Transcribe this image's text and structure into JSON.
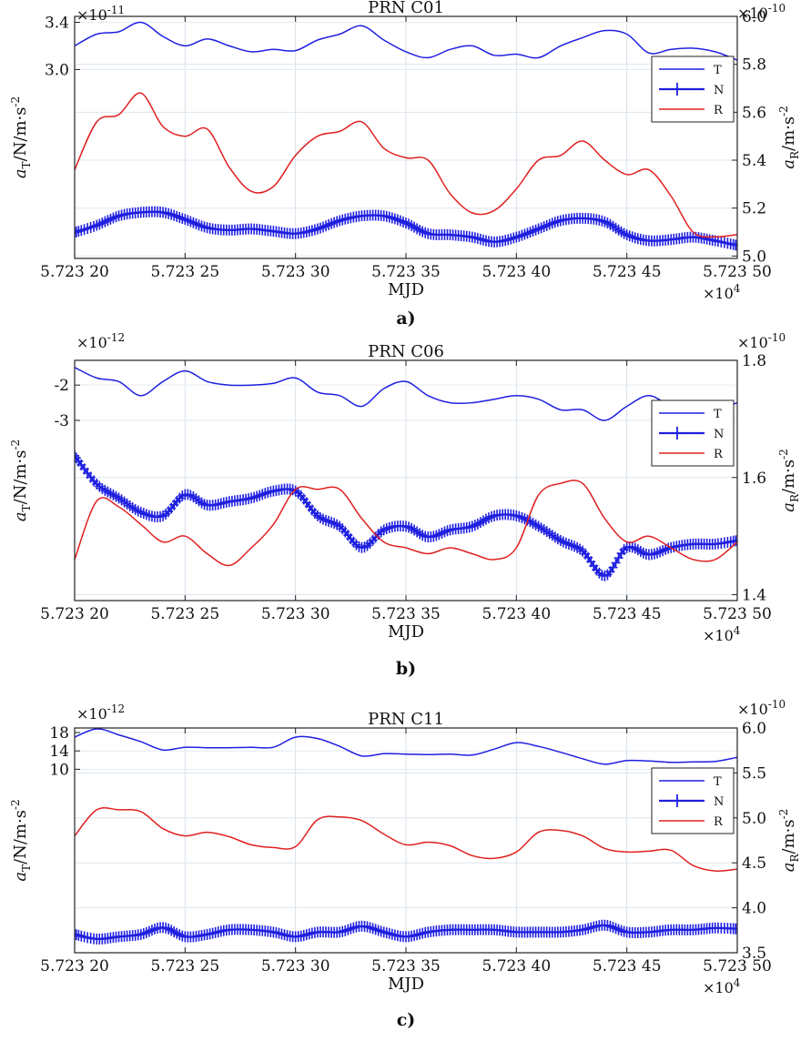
{
  "figure": {
    "panels": [
      "a",
      "b",
      "c"
    ]
  },
  "chart_data": [
    {
      "type": "line",
      "subfigure_label": "a)",
      "title": "PRN C01",
      "xlabel": "MJD",
      "ylabel_left": "a_T/N/m·s^-2",
      "ylabel_right": "a_R/m·s^-2",
      "x_multiplier": "×10^4",
      "y_left_multiplier": "×10^-11",
      "y_right_multiplier": "×10^-10",
      "xlim": [
        5.7232,
        5.7235
      ],
      "xticks": [
        5.7232,
        5.72325,
        5.7233,
        5.72335,
        5.7234,
        5.72345,
        5.7235
      ],
      "xtick_labels": [
        "5.723 20",
        "5.723 25",
        "5.723 30",
        "5.723 35",
        "5.723 40",
        "5.723 45",
        "5.723 50"
      ],
      "ylim_left": [
        1.4,
        3.45
      ],
      "yticks_left": [
        3.0,
        3.4
      ],
      "ytick_labels_left": [
        "3.0",
        "3.4"
      ],
      "ylim_right": [
        4.99,
        6.0
      ],
      "yticks_right": [
        5.0,
        5.2,
        5.4,
        5.6,
        5.8,
        6.0
      ],
      "ytick_labels_right": [
        "5.0",
        "5.2",
        "5.4",
        "5.6",
        "5.8",
        "6.0"
      ],
      "grid": true,
      "legend": "top-right",
      "x": [
        5.7232,
        5.72321,
        5.72322,
        5.72323,
        5.72324,
        5.72325,
        5.72326,
        5.72327,
        5.72328,
        5.72329,
        5.7233,
        5.72331,
        5.72332,
        5.72333,
        5.72334,
        5.72335,
        5.72336,
        5.72337,
        5.72338,
        5.72339,
        5.7234,
        5.72341,
        5.72342,
        5.72343,
        5.72344,
        5.72345,
        5.72346,
        5.72347,
        5.72348,
        5.72349,
        5.7235
      ],
      "series": [
        {
          "name": "T",
          "axis": "left",
          "color": "#1f1fe0",
          "marker": "none",
          "values": [
            3.2,
            3.3,
            3.32,
            3.4,
            3.28,
            3.2,
            3.26,
            3.2,
            3.15,
            3.17,
            3.16,
            3.25,
            3.3,
            3.37,
            3.25,
            3.15,
            3.1,
            3.17,
            3.2,
            3.12,
            3.13,
            3.1,
            3.2,
            3.27,
            3.33,
            3.3,
            3.14,
            3.17,
            3.18,
            3.15,
            3.08
          ]
        },
        {
          "name": "N",
          "axis": "left",
          "color": "#1f1fe0",
          "marker": "plus",
          "values": [
            1.62,
            1.68,
            1.76,
            1.79,
            1.79,
            1.73,
            1.66,
            1.64,
            1.65,
            1.63,
            1.61,
            1.65,
            1.72,
            1.76,
            1.76,
            1.7,
            1.61,
            1.6,
            1.58,
            1.54,
            1.58,
            1.65,
            1.72,
            1.74,
            1.71,
            1.6,
            1.55,
            1.56,
            1.58,
            1.55,
            1.51
          ]
        },
        {
          "name": "R",
          "axis": "right",
          "color": "#e02020",
          "marker": "none",
          "values": [
            5.36,
            5.56,
            5.59,
            5.68,
            5.54,
            5.5,
            5.53,
            5.37,
            5.27,
            5.29,
            5.42,
            5.5,
            5.52,
            5.56,
            5.45,
            5.41,
            5.4,
            5.26,
            5.18,
            5.19,
            5.28,
            5.4,
            5.42,
            5.48,
            5.4,
            5.34,
            5.36,
            5.25,
            5.1,
            5.08,
            5.09
          ]
        }
      ]
    },
    {
      "type": "line",
      "subfigure_label": "b)",
      "title": "PRN C06",
      "xlabel": "MJD",
      "ylabel_left": "a_T/N/m·s^-2",
      "ylabel_right": "a_R/m·s^-2",
      "x_multiplier": "×10^4",
      "y_left_multiplier": "×10^-12",
      "y_right_multiplier": "×10^-10",
      "xlim": [
        5.7232,
        5.7235
      ],
      "xticks": [
        5.7232,
        5.72325,
        5.7233,
        5.72335,
        5.7234,
        5.72345,
        5.7235
      ],
      "xtick_labels": [
        "5.723 20",
        "5.723 25",
        "5.723 30",
        "5.723 35",
        "5.723 40",
        "5.723 45",
        "5.723 50"
      ],
      "ylim_left": [
        -8.1,
        -1.3
      ],
      "yticks_left": [
        -2,
        -3
      ],
      "ytick_labels_left": [
        "-2",
        "-3"
      ],
      "ylim_right": [
        1.39,
        1.8
      ],
      "yticks_right": [
        1.4,
        1.6,
        1.8
      ],
      "ytick_labels_right": [
        "1.4",
        "1.6",
        "1.8"
      ],
      "grid": true,
      "legend": "top-right",
      "x": [
        5.7232,
        5.72321,
        5.72322,
        5.72323,
        5.72324,
        5.72325,
        5.72326,
        5.72327,
        5.72328,
        5.72329,
        5.7233,
        5.72331,
        5.72332,
        5.72333,
        5.72334,
        5.72335,
        5.72336,
        5.72337,
        5.72338,
        5.72339,
        5.7234,
        5.72341,
        5.72342,
        5.72343,
        5.72344,
        5.72345,
        5.72346,
        5.72347,
        5.72348,
        5.72349,
        5.7235
      ],
      "series": [
        {
          "name": "T",
          "axis": "left",
          "color": "#1f1fe0",
          "marker": "none",
          "values": [
            -1.5,
            -1.8,
            -1.9,
            -2.3,
            -1.9,
            -1.6,
            -1.9,
            -2.0,
            -2.0,
            -1.95,
            -1.8,
            -2.2,
            -2.3,
            -2.6,
            -2.1,
            -1.9,
            -2.3,
            -2.5,
            -2.5,
            -2.4,
            -2.3,
            -2.4,
            -2.7,
            -2.7,
            -3.0,
            -2.6,
            -2.3,
            -2.6,
            -2.7,
            -2.7,
            -2.5
          ]
        },
        {
          "name": "N",
          "axis": "left",
          "color": "#1f1fe0",
          "marker": "plus",
          "values": [
            -4.0,
            -4.8,
            -5.2,
            -5.6,
            -5.7,
            -5.1,
            -5.4,
            -5.3,
            -5.2,
            -5.0,
            -5.0,
            -5.7,
            -6.0,
            -6.6,
            -6.1,
            -6.0,
            -6.3,
            -6.1,
            -6.0,
            -5.7,
            -5.7,
            -6.0,
            -6.4,
            -6.7,
            -7.4,
            -6.6,
            -6.8,
            -6.6,
            -6.5,
            -6.5,
            -6.4
          ]
        },
        {
          "name": "R",
          "axis": "right",
          "color": "#e02020",
          "marker": "none",
          "values": [
            1.46,
            1.56,
            1.55,
            1.52,
            1.49,
            1.5,
            1.47,
            1.45,
            1.48,
            1.52,
            1.58,
            1.58,
            1.58,
            1.53,
            1.49,
            1.48,
            1.47,
            1.48,
            1.47,
            1.46,
            1.48,
            1.57,
            1.59,
            1.59,
            1.53,
            1.49,
            1.5,
            1.48,
            1.46,
            1.46,
            1.49
          ]
        }
      ]
    },
    {
      "type": "line",
      "subfigure_label": "c)",
      "title": "PRN C11",
      "xlabel": "MJD",
      "ylabel_left": "a_T/N/m·s^-2",
      "ylabel_right": "a_R/m·s^-2",
      "x_multiplier": "×10^4",
      "y_left_multiplier": "×10^-12",
      "y_right_multiplier": "×10^-10",
      "xlim": [
        5.7232,
        5.7235
      ],
      "xticks": [
        5.7232,
        5.72325,
        5.7233,
        5.72335,
        5.7234,
        5.72345,
        5.7235
      ],
      "xtick_labels": [
        "5.723 20",
        "5.723 25",
        "5.723 30",
        "5.723 35",
        "5.723 40",
        "5.723 45",
        "5.723 50"
      ],
      "ylim_left": [
        -30,
        19
      ],
      "yticks_left": [
        10,
        14,
        18
      ],
      "ytick_labels_left": [
        "10",
        "14",
        "18"
      ],
      "ylim_right": [
        3.5,
        6.0
      ],
      "yticks_right": [
        3.5,
        4.0,
        4.5,
        5.0,
        5.5,
        6.0
      ],
      "ytick_labels_right": [
        "3.5",
        "4.0",
        "4.5",
        "5.0",
        "5.5",
        "6.0"
      ],
      "grid": true,
      "legend": "top-right",
      "x": [
        5.7232,
        5.72321,
        5.72322,
        5.72323,
        5.72324,
        5.72325,
        5.72326,
        5.72327,
        5.72328,
        5.72329,
        5.7233,
        5.72331,
        5.72332,
        5.72333,
        5.72334,
        5.72335,
        5.72336,
        5.72337,
        5.72338,
        5.72339,
        5.7234,
        5.72341,
        5.72342,
        5.72343,
        5.72344,
        5.72345,
        5.72346,
        5.72347,
        5.72348,
        5.72349,
        5.7235
      ],
      "series": [
        {
          "name": "T",
          "axis": "left",
          "color": "#1f1fe0",
          "marker": "none",
          "values": [
            17.0,
            18.8,
            17.5,
            16.0,
            14.2,
            14.8,
            14.7,
            14.7,
            14.8,
            14.8,
            17.0,
            16.7,
            15.0,
            12.9,
            13.4,
            13.3,
            13.2,
            13.3,
            13.1,
            14.4,
            15.8,
            15.0,
            13.7,
            12.3,
            11.1,
            11.9,
            11.8,
            11.5,
            11.6,
            11.7,
            12.6
          ]
        },
        {
          "name": "N",
          "axis": "left",
          "color": "#1f1fe0",
          "marker": "plus",
          "values": [
            -26.0,
            -27.0,
            -26.5,
            -26.0,
            -24.5,
            -26.5,
            -26.0,
            -25.0,
            -25.0,
            -25.5,
            -26.5,
            -25.5,
            -25.5,
            -24.2,
            -25.5,
            -26.5,
            -25.5,
            -25.0,
            -25.0,
            -25.0,
            -25.5,
            -25.5,
            -25.5,
            -25.0,
            -24.0,
            -25.5,
            -25.5,
            -25.0,
            -25.0,
            -24.6,
            -24.8
          ]
        },
        {
          "name": "R",
          "axis": "right",
          "color": "#e02020",
          "marker": "none",
          "values": [
            4.8,
            5.09,
            5.09,
            5.07,
            4.88,
            4.8,
            4.84,
            4.79,
            4.7,
            4.67,
            4.68,
            4.98,
            5.01,
            4.97,
            4.82,
            4.7,
            4.73,
            4.69,
            4.58,
            4.55,
            4.62,
            4.84,
            4.86,
            4.8,
            4.66,
            4.62,
            4.63,
            4.64,
            4.47,
            4.41,
            4.43
          ]
        }
      ]
    }
  ]
}
